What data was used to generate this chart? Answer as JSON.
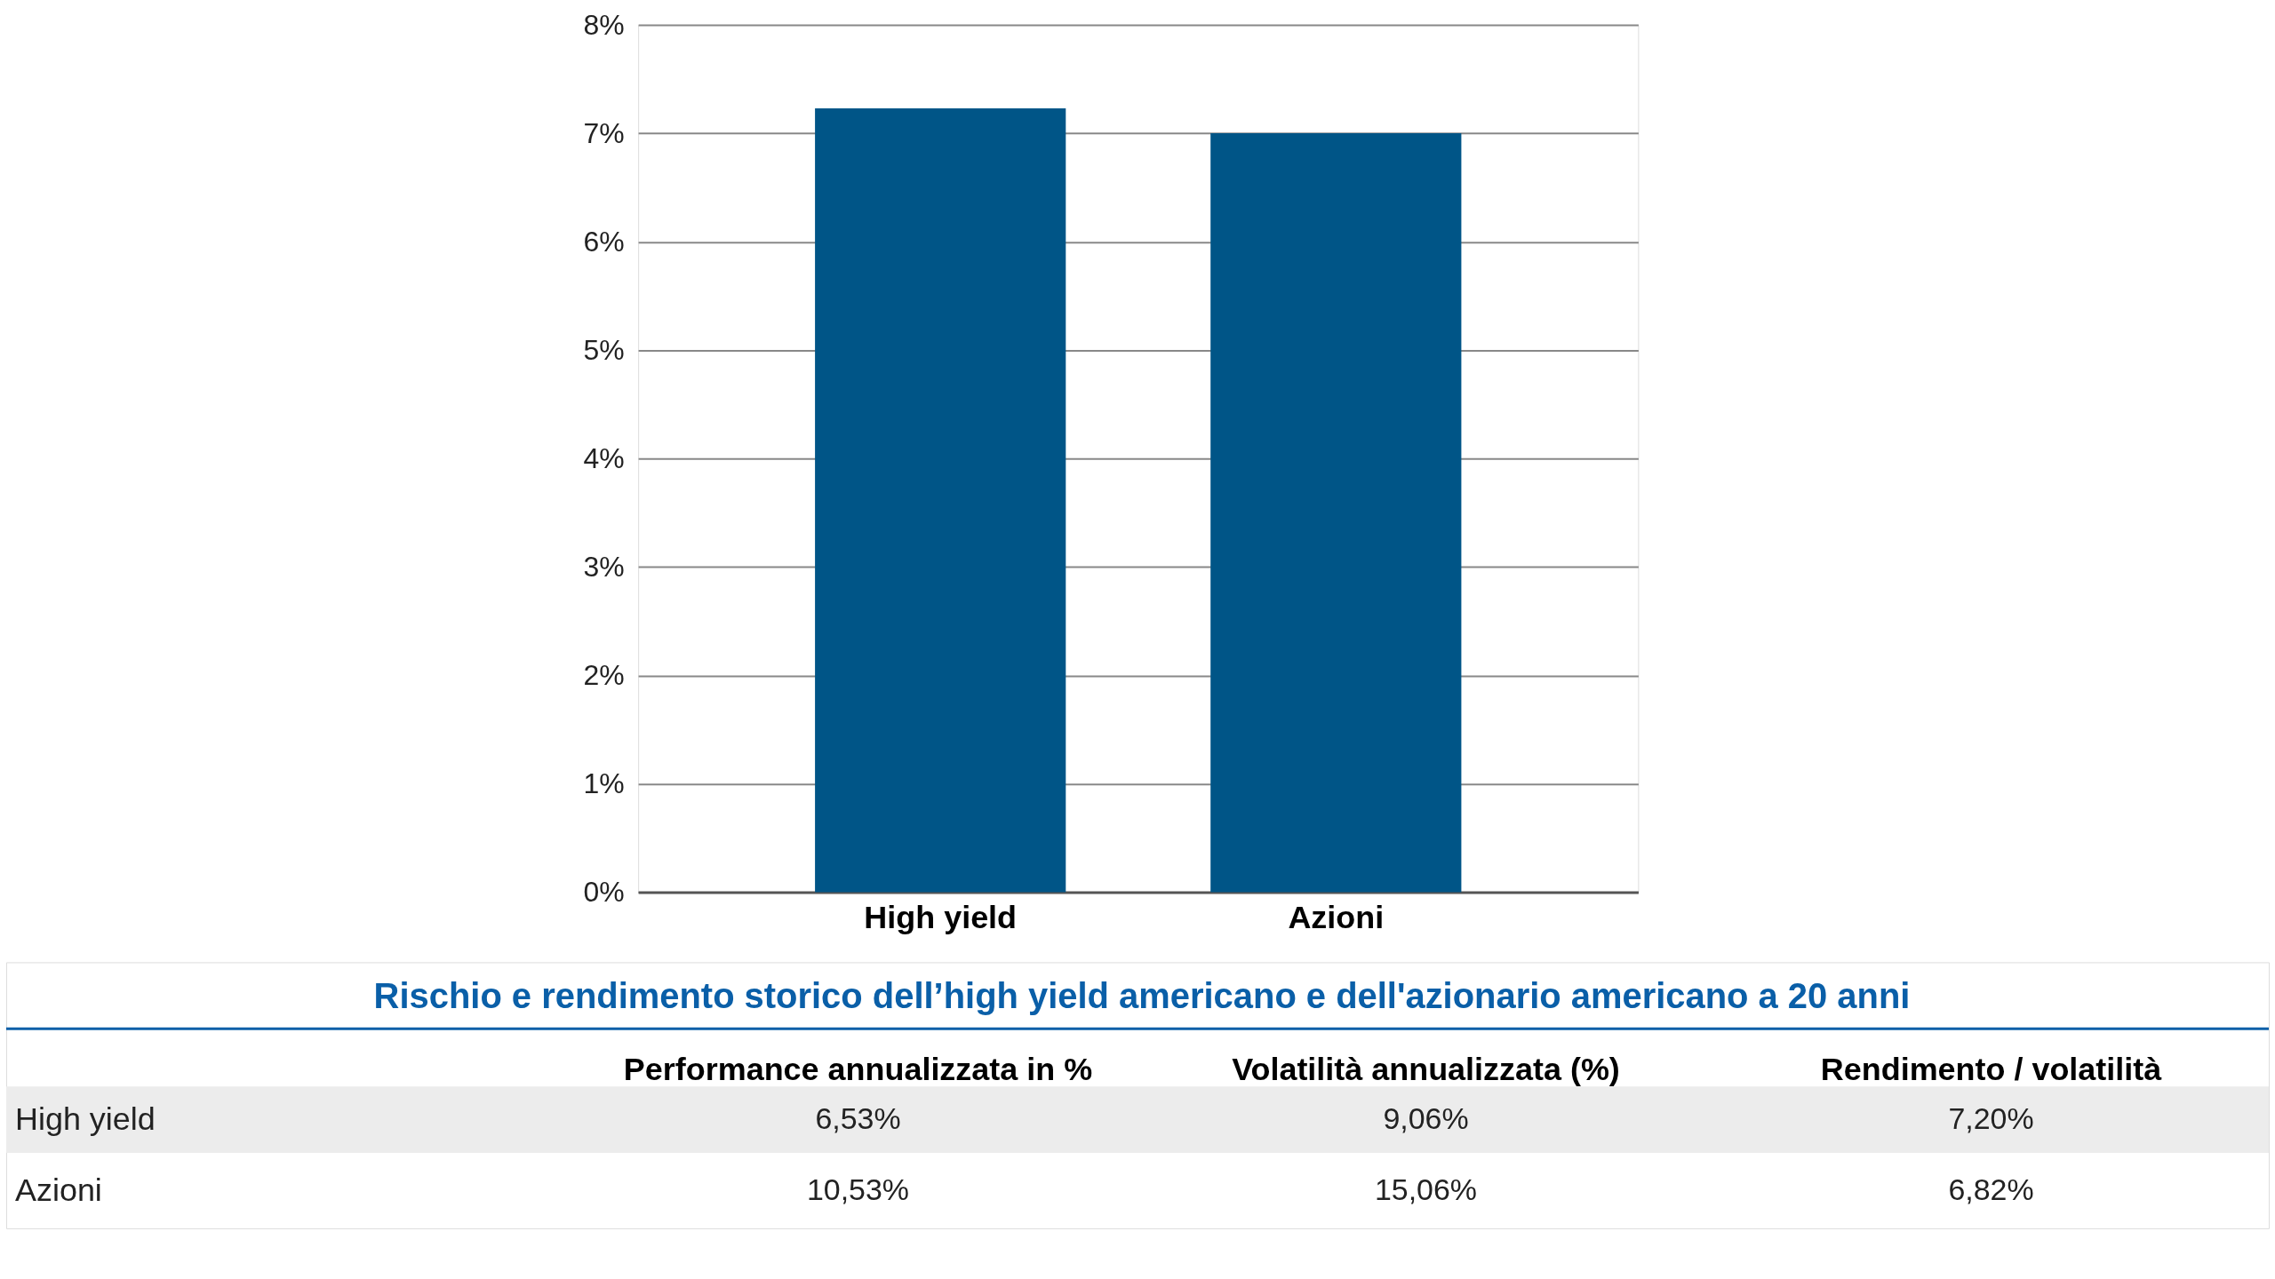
{
  "chart_data": {
    "type": "bar",
    "categories": [
      "High yield",
      "Azioni"
    ],
    "values": [
      7.23,
      7.0
    ],
    "color": "#005587",
    "ylim": [
      0,
      8
    ],
    "yticks": [
      {
        "value": 0,
        "label": "0%"
      },
      {
        "value": 1,
        "label": "1%"
      },
      {
        "value": 2,
        "label": "2%"
      },
      {
        "value": 3,
        "label": "3%"
      },
      {
        "value": 4,
        "label": "4%"
      },
      {
        "value": 5,
        "label": "5%"
      },
      {
        "value": 6,
        "label": "6%"
      },
      {
        "value": 7,
        "label": "7%"
      },
      {
        "value": 8,
        "label": "8%"
      }
    ],
    "grid": "y",
    "annotations": [
      "Rischio e rendimento storico dell’high yield americano e dell'azionario americano a 20 anni",
      "Performance annualizzata in %",
      "Volatilità annualizzata (%)",
      "Rendimento / volatilità",
      "High yield",
      "6,53%",
      "9,06%",
      "7,20%",
      "Azioni",
      "10,53%",
      "15,06%",
      "6,82%"
    ]
  }
}
